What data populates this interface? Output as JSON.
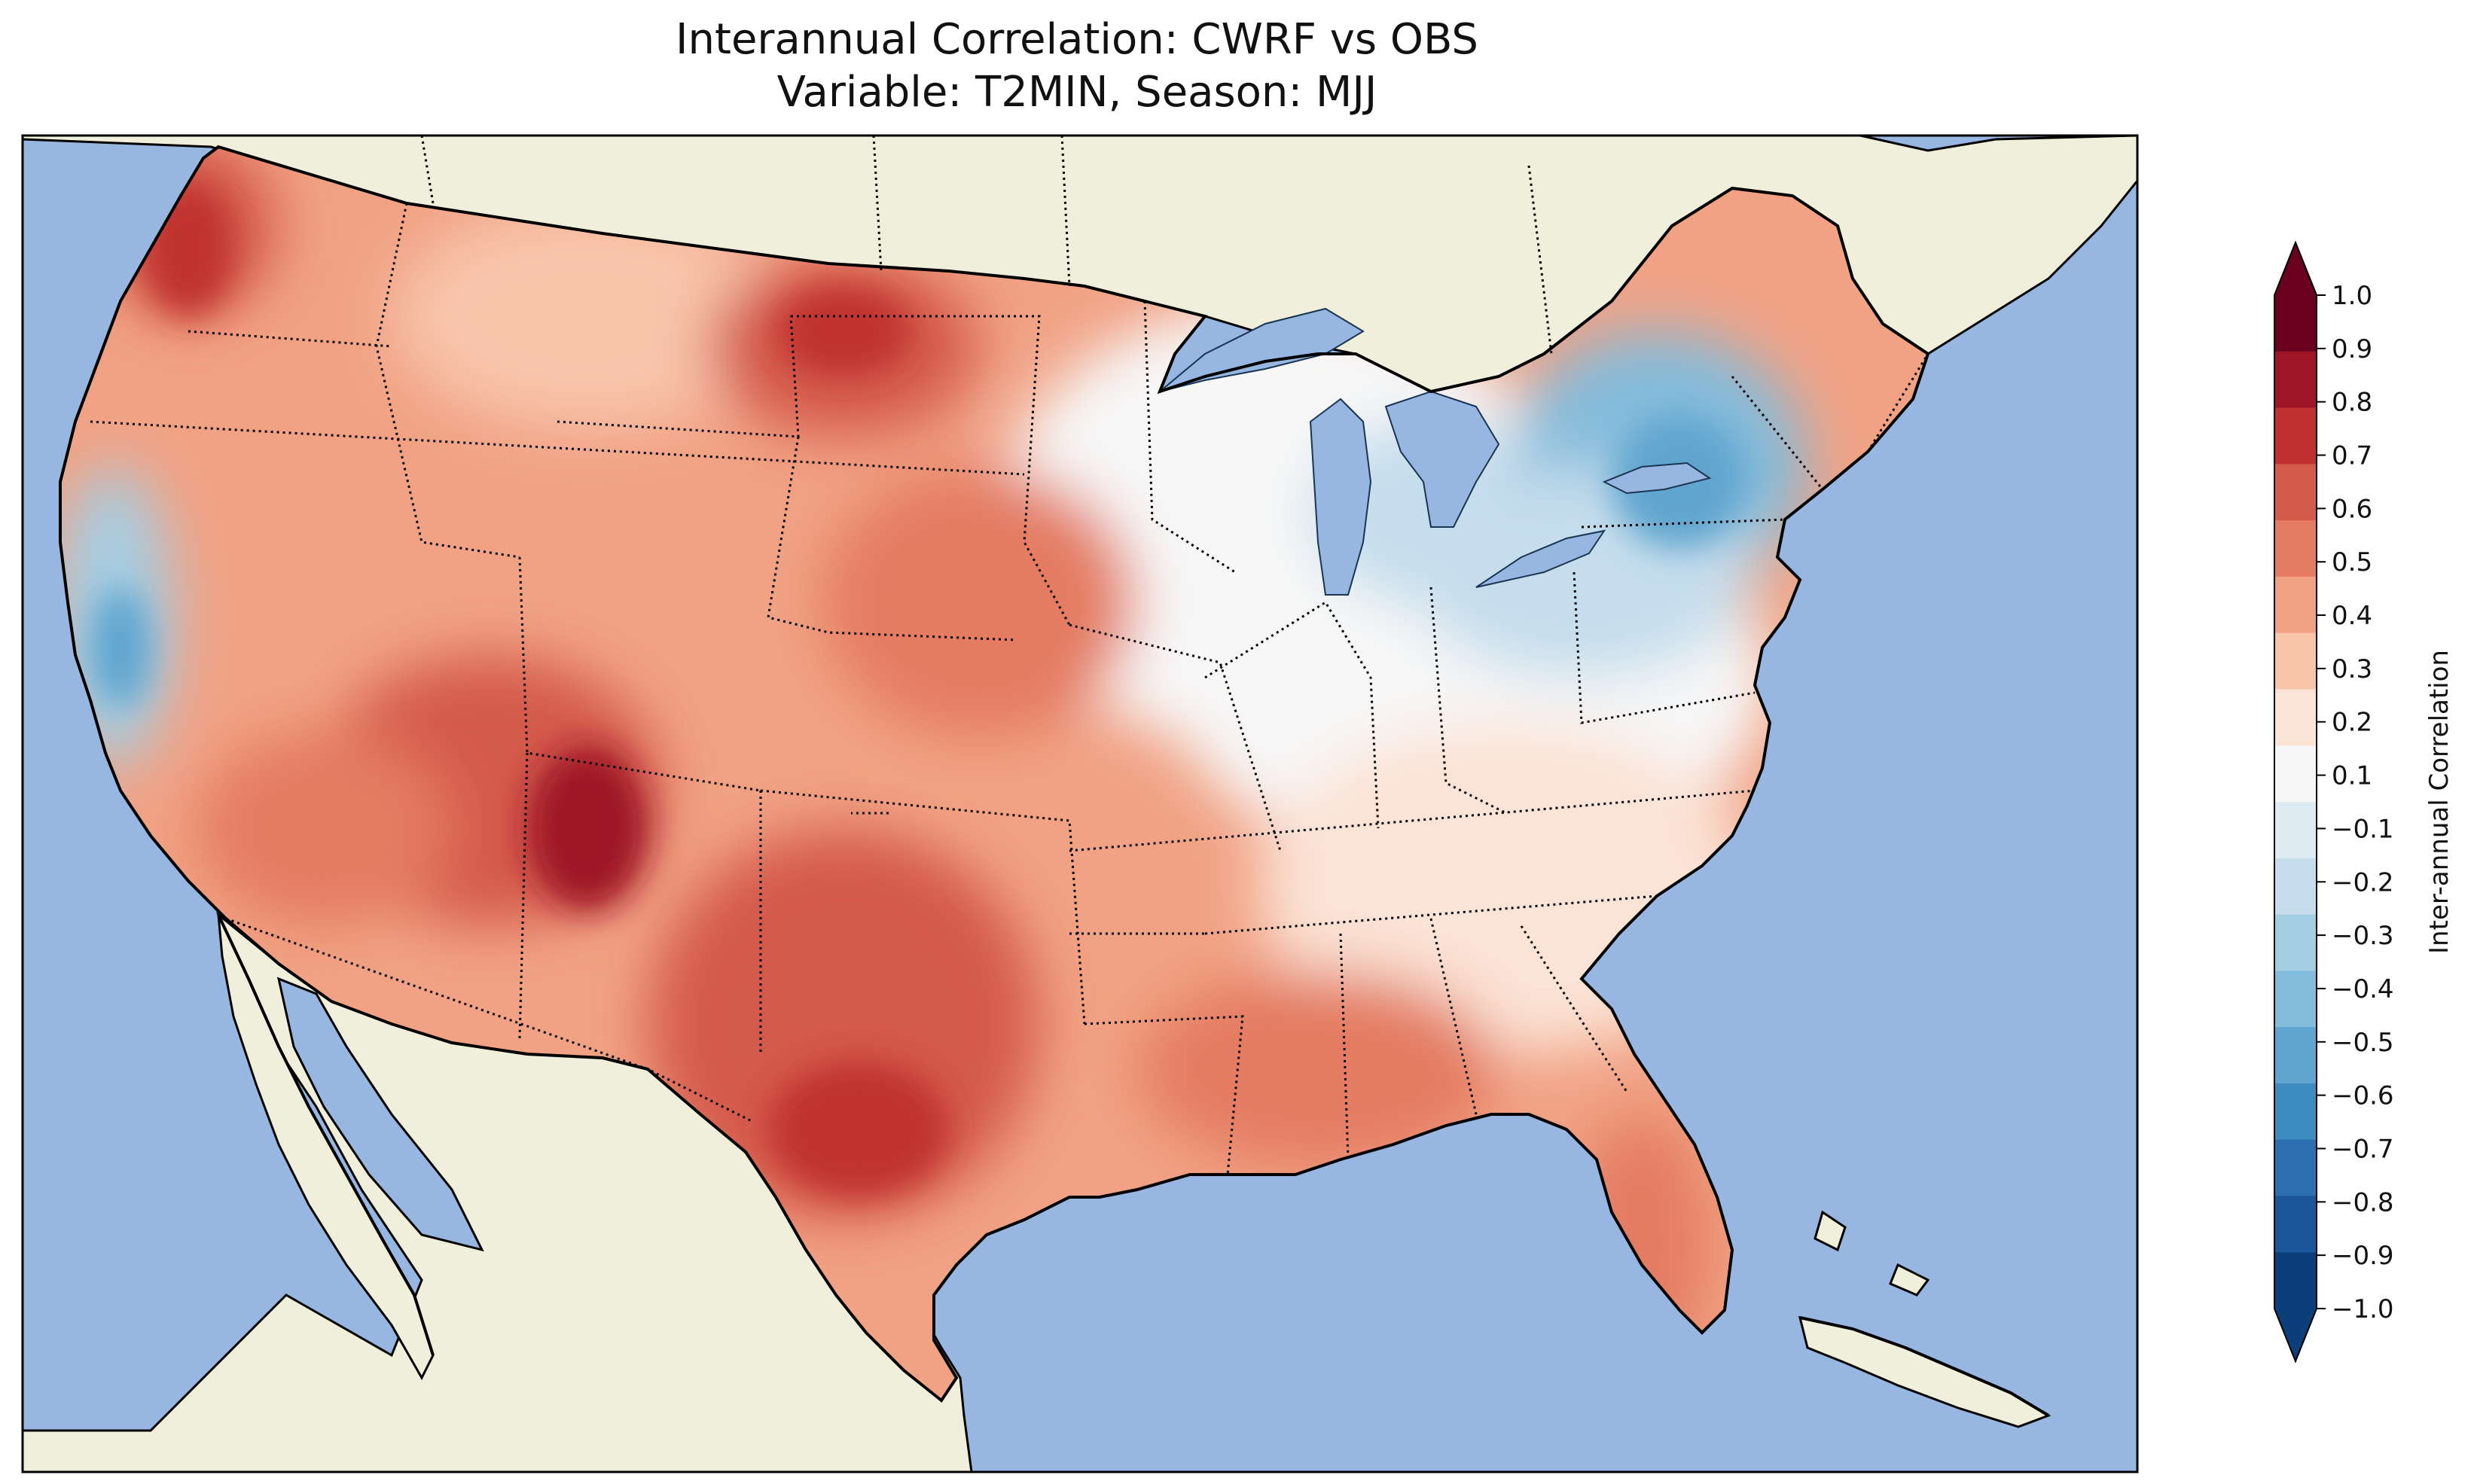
{
  "title": {
    "line1": "Interannual Correlation: CWRF vs OBS",
    "line2": "Variable: T2MIN, Season: MJJ"
  },
  "map": {
    "ocean_color": "#97b6e1",
    "land_color": "#efefdb",
    "coast_color": "#000000",
    "border_style": "dotted"
  },
  "colorbar": {
    "label": "Inter-annual Correlation",
    "extend": "both",
    "ticks": [
      "1.0",
      "0.9",
      "0.8",
      "0.7",
      "0.6",
      "0.5",
      "0.4",
      "0.3",
      "0.2",
      "0.1",
      "−0.1",
      "−0.2",
      "−0.3",
      "−0.4",
      "−0.5",
      "−0.6",
      "−0.7",
      "−0.8",
      "−0.9",
      "−1.0"
    ],
    "colors": [
      "#6a0020",
      "#9e1528",
      "#c0302f",
      "#d45a4b",
      "#e47b62",
      "#f1a284",
      "#f8c5ab",
      "#fbe3d5",
      "#f7f7f7",
      "#deebf2",
      "#c5ddec",
      "#a6cee3",
      "#84bcdb",
      "#60a5cf",
      "#3e8bc1",
      "#2b6fb0",
      "#1b569a",
      "#0c3e7a"
    ],
    "over_color": "#6a0020",
    "under_color": "#0c3e7a"
  }
}
